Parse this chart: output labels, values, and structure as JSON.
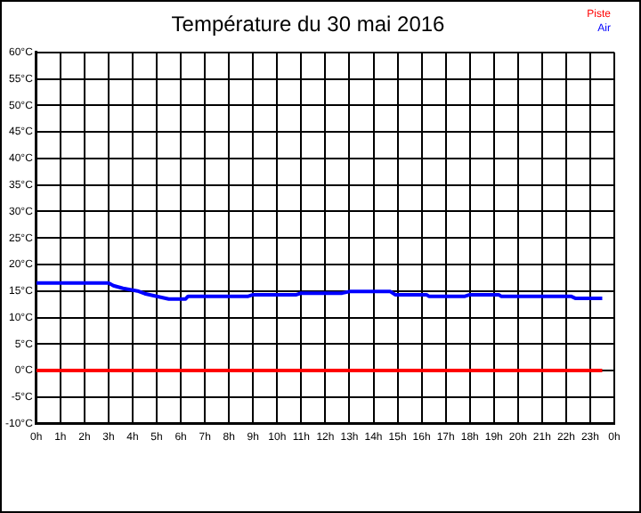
{
  "chart_data": {
    "type": "line",
    "title": "Température du 30 mai 2016",
    "x": [
      "2016-05-30T00:00",
      "2016-05-30T01:00",
      "2016-05-30T02:00",
      "2016-05-30T03:00",
      "2016-05-30T03:12",
      "2016-05-30T03:36",
      "2016-05-30T04:12",
      "2016-05-30T04:30",
      "2016-05-30T05:00",
      "2016-05-30T05:30",
      "2016-05-30T06:12",
      "2016-05-30T06:18",
      "2016-05-30T08:48",
      "2016-05-30T09:00",
      "2016-05-30T10:48",
      "2016-05-30T11:00",
      "2016-05-30T12:42",
      "2016-05-30T13:00",
      "2016-05-30T14:42",
      "2016-05-30T14:54",
      "2016-05-30T16:12",
      "2016-05-30T16:18",
      "2016-05-30T17:48",
      "2016-05-30T18:00",
      "2016-05-30T19:12",
      "2016-05-30T19:18",
      "2016-05-30T22:12",
      "2016-05-30T22:24",
      "2016-05-30T23:30"
    ],
    "series": [
      {
        "name": "Piste",
        "color": "#ff0000",
        "values": [
          0,
          0,
          0,
          0,
          0,
          0,
          0,
          0,
          0,
          0,
          0,
          0,
          0,
          0,
          0,
          0,
          0,
          0,
          0,
          0,
          0,
          0,
          0,
          0,
          0,
          0,
          0,
          0,
          0
        ]
      },
      {
        "name": "Air",
        "color": "#0000ff",
        "values": [
          16.5,
          16.5,
          16.5,
          16.5,
          16,
          15.5,
          15,
          14.5,
          14,
          13.5,
          13.5,
          14,
          14,
          14.3,
          14.3,
          14.6,
          14.6,
          14.9,
          14.9,
          14.3,
          14.3,
          14,
          14,
          14.3,
          14.3,
          14,
          14,
          13.6,
          13.6
        ]
      }
    ],
    "xlim": [
      "2016-05-30T00:00",
      "2016-05-31T00:00"
    ],
    "xticks": [
      {
        "value": "2016-05-30T00:00",
        "label": "0h"
      },
      {
        "value": "2016-05-30T01:00",
        "label": "1h"
      },
      {
        "value": "2016-05-30T02:00",
        "label": "2h"
      },
      {
        "value": "2016-05-30T03:00",
        "label": "3h"
      },
      {
        "value": "2016-05-30T04:00",
        "label": "4h"
      },
      {
        "value": "2016-05-30T05:00",
        "label": "5h"
      },
      {
        "value": "2016-05-30T06:00",
        "label": "6h"
      },
      {
        "value": "2016-05-30T07:00",
        "label": "7h"
      },
      {
        "value": "2016-05-30T08:00",
        "label": "8h"
      },
      {
        "value": "2016-05-30T09:00",
        "label": "9h"
      },
      {
        "value": "2016-05-30T10:00",
        "label": "10h"
      },
      {
        "value": "2016-05-30T11:00",
        "label": "11h"
      },
      {
        "value": "2016-05-30T12:00",
        "label": "12h"
      },
      {
        "value": "2016-05-30T13:00",
        "label": "13h"
      },
      {
        "value": "2016-05-30T14:00",
        "label": "14h"
      },
      {
        "value": "2016-05-30T15:00",
        "label": "15h"
      },
      {
        "value": "2016-05-30T16:00",
        "label": "16h"
      },
      {
        "value": "2016-05-30T17:00",
        "label": "17h"
      },
      {
        "value": "2016-05-30T18:00",
        "label": "18h"
      },
      {
        "value": "2016-05-30T19:00",
        "label": "19h"
      },
      {
        "value": "2016-05-30T20:00",
        "label": "20h"
      },
      {
        "value": "2016-05-30T21:00",
        "label": "21h"
      },
      {
        "value": "2016-05-30T22:00",
        "label": "22h"
      },
      {
        "value": "2016-05-30T23:00",
        "label": "23h"
      },
      {
        "value": "2016-05-31T00:00",
        "label": "0h"
      }
    ],
    "ylim": [
      -10,
      60
    ],
    "yticks": [
      {
        "value": -10,
        "label": "-10°C"
      },
      {
        "value": -5,
        "label": "-5°C"
      },
      {
        "value": 0,
        "label": "0°C"
      },
      {
        "value": 5,
        "label": "5°C"
      },
      {
        "value": 10,
        "label": "10°C"
      },
      {
        "value": 15,
        "label": "15°C"
      },
      {
        "value": 20,
        "label": "20°C"
      },
      {
        "value": 25,
        "label": "25°C"
      },
      {
        "value": 30,
        "label": "30°C"
      },
      {
        "value": 35,
        "label": "35°C"
      },
      {
        "value": 40,
        "label": "40°C"
      },
      {
        "value": 45,
        "label": "45°C"
      },
      {
        "value": 50,
        "label": "50°C"
      },
      {
        "value": 55,
        "label": "55°C"
      },
      {
        "value": 60,
        "label": "60°C"
      }
    ],
    "grid": true,
    "legend": "top right",
    "marker": "none",
    "line_style": "solid"
  }
}
